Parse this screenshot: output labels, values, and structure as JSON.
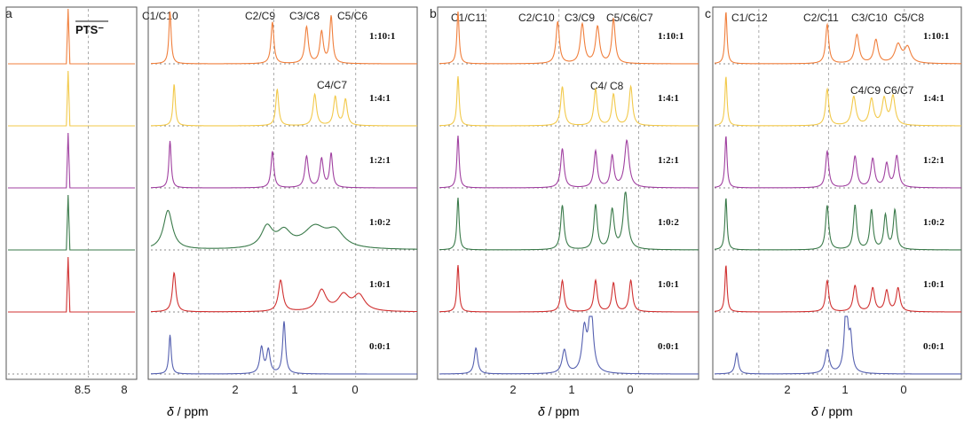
{
  "panels": [
    {
      "letter": "a",
      "xlabel_sym": "δ",
      "xlabel_unit": " / ppm",
      "pts_label": "PTS⁻",
      "inset_ticks": [
        {
          "v": 8.5,
          "t": "8.5"
        },
        {
          "v": 8,
          "t": "8"
        }
      ],
      "main_ticks": [
        {
          "v": 2,
          "t": "2"
        },
        {
          "v": 1,
          "t": "1"
        },
        {
          "v": 0,
          "t": "0"
        }
      ],
      "assignments_top": [
        "C1/C10",
        "C2/C9",
        "C3/C8",
        "C5/C6"
      ],
      "assignment_mid": "C4/C7"
    },
    {
      "letter": "b",
      "xlabel_sym": "δ",
      "xlabel_unit": " / ppm",
      "main_ticks": [
        {
          "v": 2,
          "t": "2"
        },
        {
          "v": 1,
          "t": "1"
        },
        {
          "v": 0,
          "t": "0"
        }
      ],
      "assignments_top": [
        "C1/C11",
        "C2/C10",
        "C3/C9",
        "C5/C6/C7"
      ],
      "assignment_mid": "C4/ C8"
    },
    {
      "letter": "c",
      "xlabel_sym": "δ",
      "xlabel_unit": " / ppm",
      "main_ticks": [
        {
          "v": 2,
          "t": "2"
        },
        {
          "v": 1,
          "t": "1"
        },
        {
          "v": 0,
          "t": "0"
        }
      ],
      "assignments_top": [
        "C1/C12",
        "C2/C11",
        "C3/C10",
        "C5/C8"
      ],
      "assignment_mid": "C4/C9  C6/C7"
    }
  ],
  "chart_data": [
    {
      "type": "line",
      "panel": "a",
      "xlabel": "δ / ppm",
      "x_reversed": true,
      "xlim_main": [
        3.0,
        -0.9
      ],
      "xlim_inset": [
        8.9,
        7.95
      ],
      "series": [
        {
          "name": "1:10:1",
          "color": "#f07f3c",
          "peaks": [
            [
              2.72,
              1.0,
              0.02
            ],
            [
              1.22,
              0.8,
              0.025
            ],
            [
              0.72,
              0.7,
              0.03
            ],
            [
              0.5,
              0.6,
              0.03
            ],
            [
              0.36,
              0.9,
              0.025
            ]
          ],
          "inset_peak": [
            8.45,
            1.0
          ]
        },
        {
          "name": "1:4:1",
          "color": "#f2c94a",
          "peaks": [
            [
              2.66,
              0.8,
              0.02
            ],
            [
              1.15,
              0.7,
              0.025
            ],
            [
              0.6,
              0.6,
              0.03
            ],
            [
              0.3,
              0.55,
              0.03
            ],
            [
              0.15,
              0.5,
              0.03
            ]
          ],
          "inset_peak": [
            8.45,
            1.0
          ]
        },
        {
          "name": "1:2:1",
          "color": "#a040a0",
          "peaks": [
            [
              2.72,
              0.9,
              0.02
            ],
            [
              1.22,
              0.7,
              0.025
            ],
            [
              0.72,
              0.6,
              0.03
            ],
            [
              0.5,
              0.55,
              0.03
            ],
            [
              0.36,
              0.65,
              0.025
            ]
          ],
          "inset_peak": [
            8.45,
            1.0
          ]
        },
        {
          "name": "1:0:2",
          "color": "#3a7a4a",
          "peaks": [
            [
              2.75,
              0.75,
              0.08
            ],
            [
              1.3,
              0.4,
              0.1
            ],
            [
              1.05,
              0.3,
              0.12
            ],
            [
              0.6,
              0.4,
              0.2
            ],
            [
              0.3,
              0.3,
              0.15
            ]
          ],
          "inset_peak": [
            8.45,
            1.0
          ]
        },
        {
          "name": "1:0:1",
          "color": "#d03030",
          "peaks": [
            [
              2.66,
              0.75,
              0.03
            ],
            [
              1.1,
              0.6,
              0.04
            ],
            [
              0.5,
              0.4,
              0.08
            ],
            [
              0.18,
              0.3,
              0.1
            ],
            [
              -0.05,
              0.3,
              0.1
            ]
          ],
          "inset_peak": [
            8.45,
            1.0
          ]
        },
        {
          "name": "0:0:1",
          "color": "#5560b0",
          "peaks": [
            [
              2.72,
              0.75,
              0.02
            ],
            [
              1.38,
              0.5,
              0.03
            ],
            [
              1.28,
              0.45,
              0.03
            ],
            [
              1.05,
              1.0,
              0.025
            ]
          ],
          "inset_peak": null
        }
      ]
    },
    {
      "type": "line",
      "panel": "b",
      "xlabel": "δ / ppm",
      "x_reversed": true,
      "xlim": [
        3.0,
        -0.9
      ],
      "series": [
        {
          "name": "1:10:1",
          "color": "#f07f3c",
          "peaks": [
            [
              2.72,
              1.0,
              0.02
            ],
            [
              1.22,
              0.8,
              0.03
            ],
            [
              0.85,
              0.75,
              0.035
            ],
            [
              0.62,
              0.7,
              0.035
            ],
            [
              0.38,
              0.85,
              0.03
            ]
          ]
        },
        {
          "name": "1:4:1",
          "color": "#f2c94a",
          "peaks": [
            [
              2.72,
              0.95,
              0.02
            ],
            [
              1.15,
              0.75,
              0.03
            ],
            [
              0.65,
              0.7,
              0.03
            ],
            [
              0.38,
              0.6,
              0.03
            ],
            [
              0.12,
              0.75,
              0.03
            ]
          ]
        },
        {
          "name": "1:2:1",
          "color": "#a040a0",
          "peaks": [
            [
              2.72,
              1.0,
              0.02
            ],
            [
              1.15,
              0.75,
              0.03
            ],
            [
              0.65,
              0.7,
              0.03
            ],
            [
              0.4,
              0.6,
              0.03
            ],
            [
              0.18,
              0.9,
              0.04
            ]
          ]
        },
        {
          "name": "1:0:2",
          "color": "#3a7a4a",
          "peaks": [
            [
              2.72,
              1.0,
              0.02
            ],
            [
              1.15,
              0.85,
              0.03
            ],
            [
              0.65,
              0.85,
              0.03
            ],
            [
              0.4,
              0.75,
              0.035
            ],
            [
              0.2,
              1.1,
              0.04
            ]
          ]
        },
        {
          "name": "1:0:1",
          "color": "#d03030",
          "peaks": [
            [
              2.72,
              0.9,
              0.02
            ],
            [
              1.15,
              0.6,
              0.03
            ],
            [
              0.65,
              0.6,
              0.03
            ],
            [
              0.38,
              0.55,
              0.03
            ],
            [
              0.12,
              0.6,
              0.03
            ]
          ]
        },
        {
          "name": "0:0:1",
          "color": "#5560b0",
          "peaks": [
            [
              2.45,
              0.5,
              0.03
            ],
            [
              1.12,
              0.45,
              0.04
            ],
            [
              0.82,
              0.8,
              0.04
            ],
            [
              0.72,
              1.3,
              0.04
            ]
          ]
        }
      ]
    },
    {
      "type": "line",
      "panel": "c",
      "xlabel": "δ / ppm",
      "x_reversed": true,
      "xlim": [
        3.0,
        -0.9
      ],
      "series": [
        {
          "name": "1:10:1",
          "color": "#f07f3c",
          "peaks": [
            [
              2.82,
              1.0,
              0.02
            ],
            [
              1.22,
              0.75,
              0.03
            ],
            [
              0.75,
              0.55,
              0.04
            ],
            [
              0.45,
              0.45,
              0.04
            ],
            [
              0.1,
              0.35,
              0.06
            ],
            [
              -0.05,
              0.3,
              0.06
            ]
          ]
        },
        {
          "name": "1:4:1",
          "color": "#f2c94a",
          "peaks": [
            [
              2.82,
              0.95,
              0.02
            ],
            [
              1.22,
              0.7,
              0.03
            ],
            [
              0.8,
              0.55,
              0.04
            ],
            [
              0.52,
              0.5,
              0.04
            ],
            [
              0.32,
              0.5,
              0.04
            ],
            [
              0.18,
              0.55,
              0.04
            ]
          ]
        },
        {
          "name": "1:2:1",
          "color": "#a040a0",
          "peaks": [
            [
              2.82,
              1.0,
              0.02
            ],
            [
              1.22,
              0.7,
              0.03
            ],
            [
              0.78,
              0.6,
              0.035
            ],
            [
              0.5,
              0.55,
              0.035
            ],
            [
              0.28,
              0.45,
              0.035
            ],
            [
              0.12,
              0.6,
              0.035
            ]
          ]
        },
        {
          "name": "1:0:2",
          "color": "#3a7a4a",
          "peaks": [
            [
              2.82,
              1.0,
              0.02
            ],
            [
              1.22,
              0.85,
              0.03
            ],
            [
              0.78,
              0.85,
              0.03
            ],
            [
              0.52,
              0.75,
              0.03
            ],
            [
              0.3,
              0.65,
              0.03
            ],
            [
              0.15,
              0.75,
              0.03
            ]
          ]
        },
        {
          "name": "1:0:1",
          "color": "#d03030",
          "peaks": [
            [
              2.82,
              0.9,
              0.02
            ],
            [
              1.22,
              0.6,
              0.03
            ],
            [
              0.78,
              0.5,
              0.035
            ],
            [
              0.5,
              0.45,
              0.035
            ],
            [
              0.28,
              0.4,
              0.035
            ],
            [
              0.1,
              0.45,
              0.035
            ]
          ]
        },
        {
          "name": "0:0:1",
          "color": "#5560b0",
          "peaks": [
            [
              2.65,
              0.4,
              0.03
            ],
            [
              1.22,
              0.45,
              0.04
            ],
            [
              0.92,
              1.3,
              0.035
            ],
            [
              0.85,
              0.6,
              0.03
            ]
          ]
        }
      ]
    }
  ]
}
